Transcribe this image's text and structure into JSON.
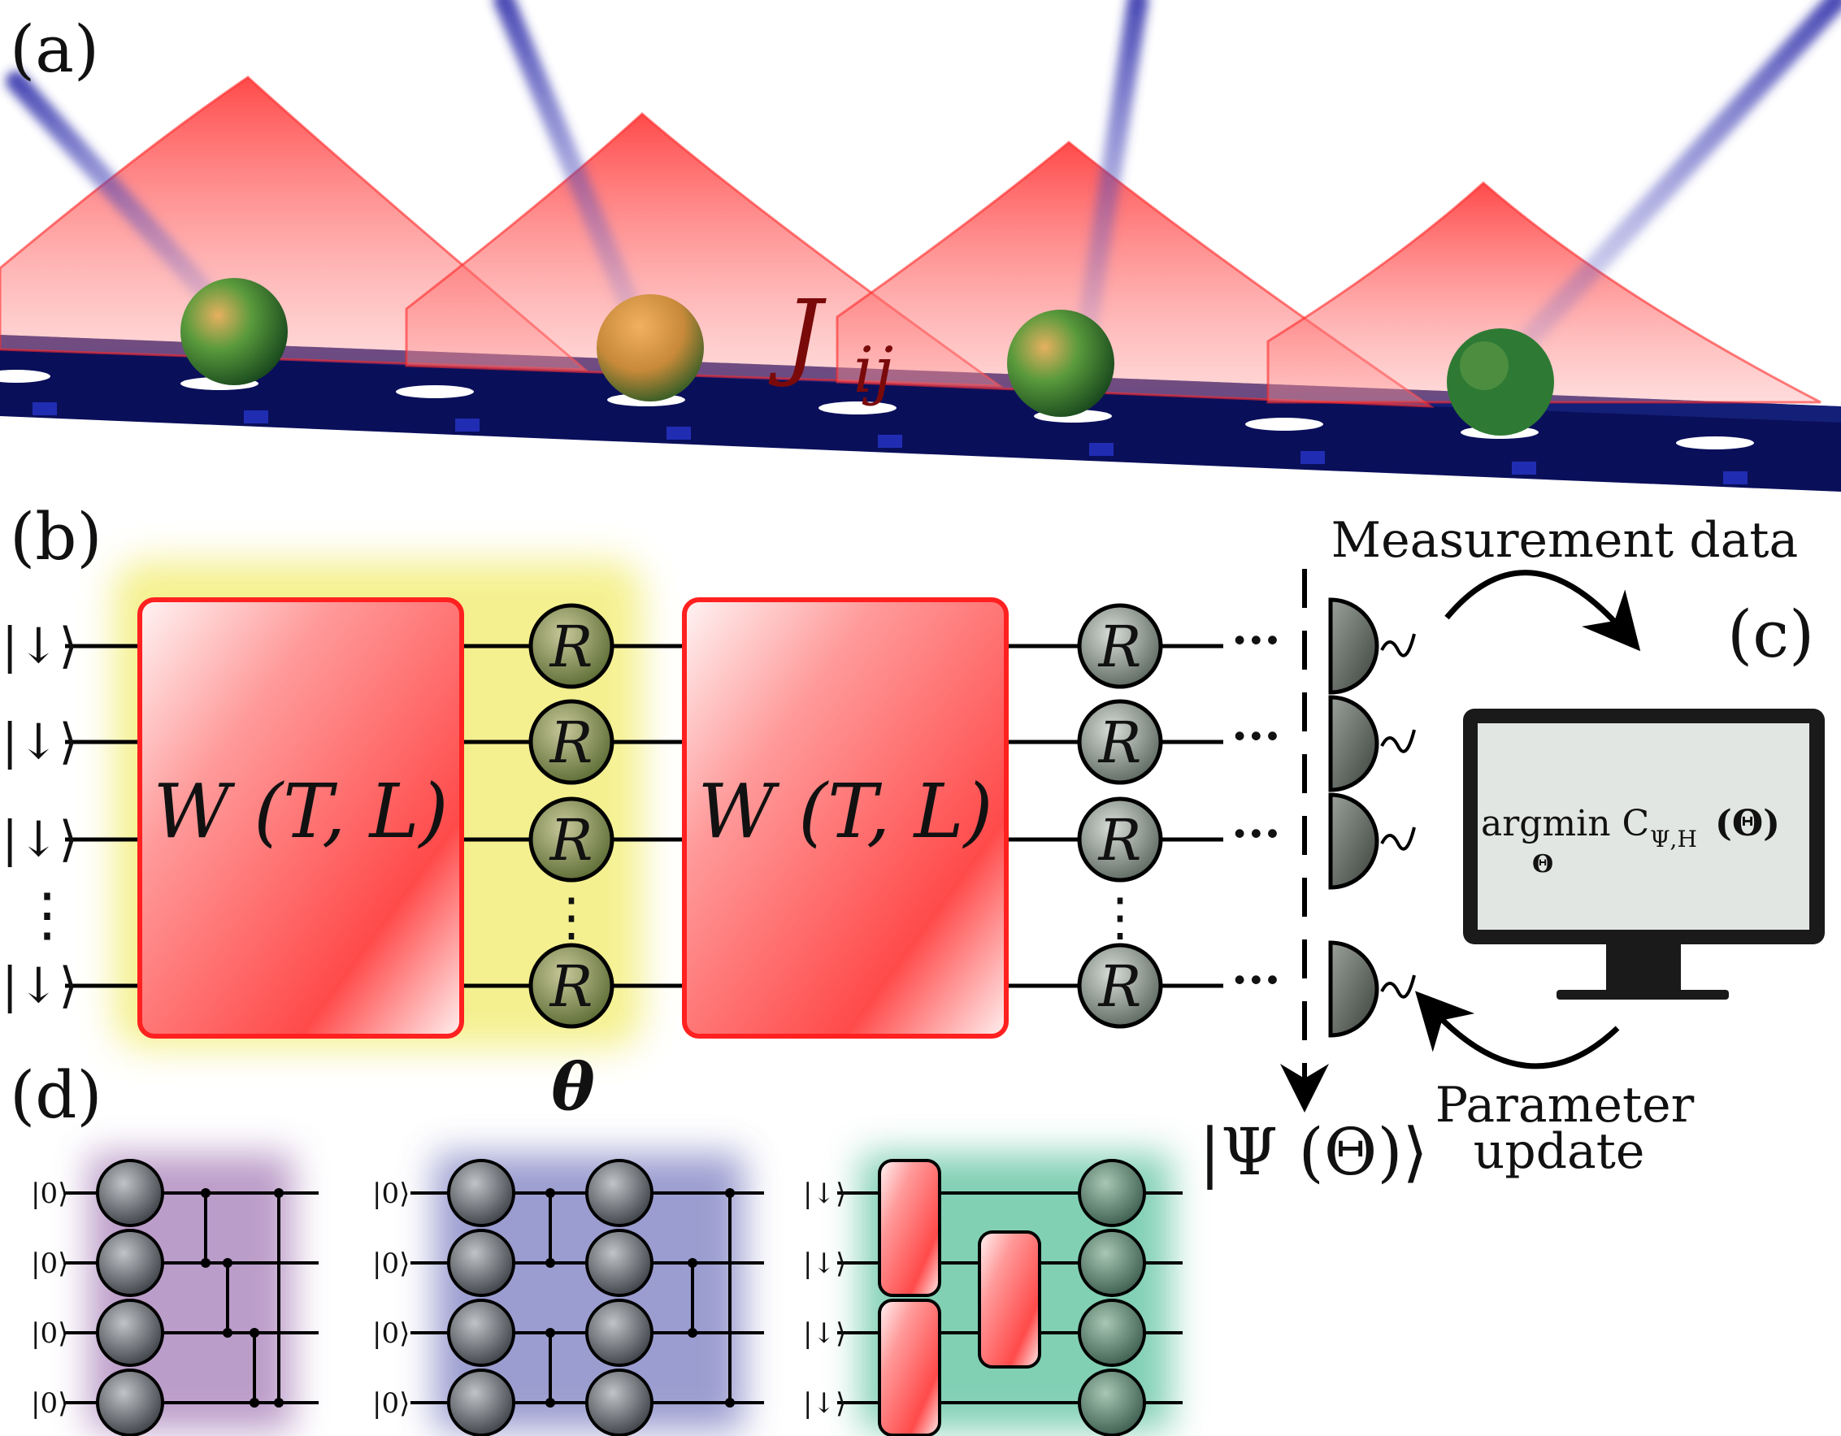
{
  "panels": {
    "a": "(a)",
    "b": "(b)",
    "c": "(c)",
    "d": "(d)"
  },
  "panel_a": {
    "coupling_label": "J",
    "coupling_sub": "ij"
  },
  "panel_b": {
    "input_state": "|↓⟩",
    "vdots": "⋮",
    "block_label": "W (T, L)",
    "rotation_label": "R",
    "theta_label": "θ",
    "ellipsis": "···",
    "output_state": "|Ψ (Θ)⟩",
    "measurement_label": "Measurement data"
  },
  "panel_c": {
    "screen_main": "argmin C",
    "screen_sub": "Ψ,H",
    "screen_arg": "(Θ)",
    "screen_under": "Θ",
    "update_line1": "Parameter",
    "update_line2": "update"
  },
  "panel_d": {
    "ket_zero": "|0⟩",
    "ket_down": "|↓⟩"
  },
  "colors": {
    "lattice_blue": "#0a0f5a",
    "potential_red": "#ff3b3b",
    "gate_red": "#ff2a2a",
    "yellow_glow": "#f4f08a",
    "purple_glow": "#b08cc0",
    "lavender_glow": "#8a8cc8",
    "teal_glow": "#6cc8a8"
  }
}
